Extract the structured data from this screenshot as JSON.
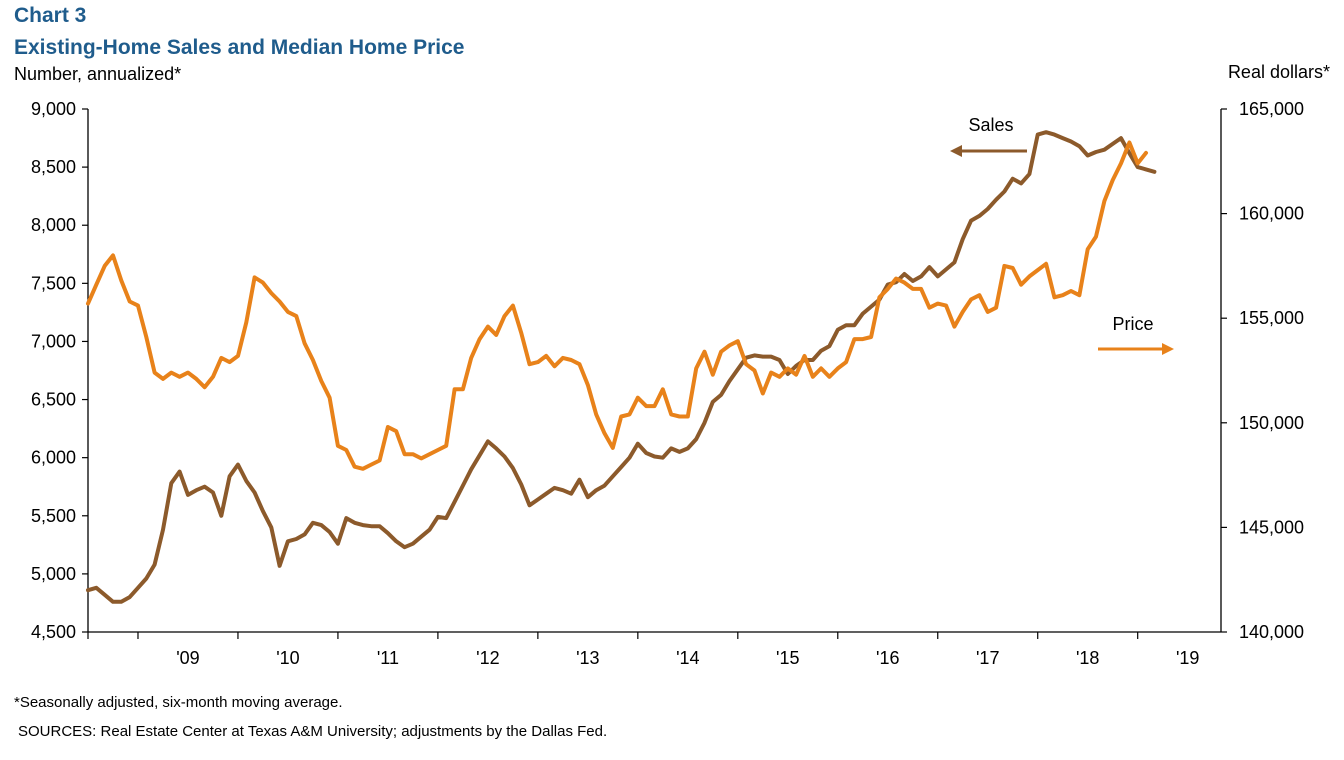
{
  "header": {
    "chart_number": "Chart 3",
    "title": "Existing-Home Sales and Median Home Price",
    "left_axis_label": "Number, annualized*",
    "right_axis_label": "Real dollars*"
  },
  "footer": {
    "note": "*Seasonally adjusted, six-month moving average.",
    "sources": "SOURCES: Real Estate Center at Texas A&M University; adjustments by the Dallas Fed."
  },
  "colors": {
    "sales": "#8c5a2b",
    "price": "#e8821a"
  },
  "chart_data": {
    "type": "line",
    "title": "Existing-Home Sales and Median Home Price",
    "x_start": "2008-07",
    "x_frequency": "monthly",
    "x_ticks": [
      "'09",
      "'10",
      "'11",
      "'12",
      "'13",
      "'14",
      "'15",
      "'16",
      "'17",
      "'18",
      "'19"
    ],
    "y_left": {
      "label": "Number, annualized*",
      "min": 4500,
      "max": 9000,
      "step": 500,
      "ticks": [
        "4,500",
        "5,000",
        "5,500",
        "6,000",
        "6,500",
        "7,000",
        "7,500",
        "8,000",
        "8,500",
        "9,000"
      ]
    },
    "y_right": {
      "label": "Real dollars*",
      "min": 140000,
      "max": 165000,
      "step": 5000,
      "ticks": [
        "140,000",
        "145,000",
        "150,000",
        "155,000",
        "160,000",
        "165,000"
      ]
    },
    "grid": false,
    "annotations": [
      {
        "text": "Sales",
        "arrow": "left",
        "axis": "left"
      },
      {
        "text": "Price",
        "arrow": "right",
        "axis": "right"
      }
    ],
    "series": [
      {
        "name": "Sales",
        "axis": "left",
        "values": [
          4860,
          4880,
          4820,
          4760,
          4760,
          4800,
          4880,
          4960,
          5080,
          5380,
          5780,
          5880,
          5680,
          5720,
          5750,
          5700,
          5500,
          5840,
          5940,
          5800,
          5700,
          5540,
          5400,
          5070,
          5280,
          5300,
          5340,
          5440,
          5420,
          5360,
          5260,
          5480,
          5440,
          5420,
          5410,
          5410,
          5350,
          5280,
          5230,
          5260,
          5320,
          5380,
          5490,
          5480,
          5620,
          5760,
          5900,
          6020,
          6140,
          6080,
          6010,
          5910,
          5770,
          5590,
          5640,
          5690,
          5740,
          5720,
          5690,
          5810,
          5660,
          5720,
          5760,
          5840,
          5920,
          6000,
          6120,
          6040,
          6010,
          6000,
          6080,
          6050,
          6080,
          6160,
          6300,
          6480,
          6540,
          6660,
          6760,
          6860,
          6880,
          6870,
          6870,
          6840,
          6720,
          6790,
          6840,
          6840,
          6920,
          6960,
          7100,
          7140,
          7140,
          7240,
          7300,
          7360,
          7490,
          7510,
          7580,
          7520,
          7560,
          7640,
          7560,
          7620,
          7680,
          7880,
          8040,
          8080,
          8140,
          8220,
          8290,
          8400,
          8360,
          8440,
          8780,
          8800,
          8780,
          8750,
          8720,
          8680,
          8600,
          8630,
          8650,
          8700,
          8750,
          8620,
          8500,
          8480,
          8460
        ]
      },
      {
        "name": "Price",
        "axis": "right",
        "values": [
          155700,
          156600,
          157500,
          158000,
          156800,
          155800,
          155600,
          154100,
          152400,
          152100,
          152400,
          152200,
          152400,
          152100,
          151700,
          152200,
          153100,
          152900,
          153200,
          154800,
          156950,
          156700,
          156200,
          155800,
          155300,
          155100,
          153800,
          153000,
          152000,
          151200,
          148900,
          148700,
          147900,
          147800,
          148000,
          148200,
          149800,
          149600,
          148500,
          148500,
          148300,
          148500,
          148700,
          148900,
          151600,
          151600,
          153100,
          154000,
          154600,
          154200,
          155100,
          155600,
          154300,
          152800,
          152900,
          153200,
          152700,
          153100,
          153000,
          152800,
          151800,
          150400,
          149500,
          148800,
          150300,
          150400,
          151200,
          150800,
          150800,
          151600,
          150400,
          150300,
          150300,
          152600,
          153400,
          152300,
          153400,
          153700,
          153900,
          152800,
          152500,
          151400,
          152400,
          152200,
          152600,
          152300,
          153200,
          152200,
          152600,
          152200,
          152600,
          152900,
          154000,
          154000,
          154100,
          156000,
          156400,
          156900,
          156700,
          156400,
          156400,
          155500,
          155700,
          155600,
          154600,
          155300,
          155900,
          156100,
          155300,
          155500,
          157500,
          157400,
          156600,
          157000,
          157300,
          157600,
          156000,
          156100,
          156300,
          156100,
          158300,
          158900,
          160600,
          161600,
          162400,
          163400,
          162400,
          162900
        ]
      }
    ]
  }
}
